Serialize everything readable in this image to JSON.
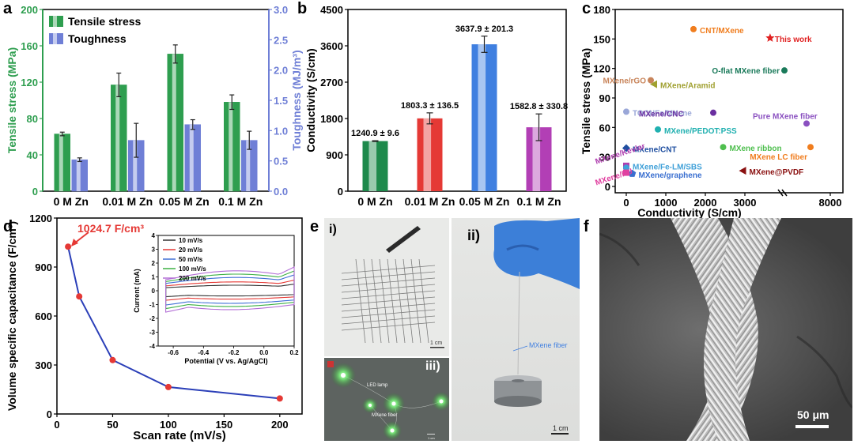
{
  "panel_letters": {
    "a": "a",
    "b": "b",
    "c": "c",
    "d": "d",
    "e": "e",
    "f": "f"
  },
  "chart_data": [
    {
      "id": "a",
      "type": "bar",
      "categories": [
        "0 M Zn",
        "0.01 M Zn",
        "0.05 M Zn",
        "0.1 M Zn"
      ],
      "series": [
        {
          "name": "Tensile stress",
          "axis": "left",
          "color": "#2e9e4f",
          "values": [
            63,
            117,
            151,
            98
          ],
          "errors": [
            2,
            13,
            10,
            8
          ]
        },
        {
          "name": "Toughness",
          "axis": "right",
          "color": "#6f7fd6",
          "values": [
            0.52,
            0.84,
            1.1,
            0.84
          ],
          "errors": [
            0.03,
            0.28,
            0.08,
            0.15
          ]
        }
      ],
      "ylabel": "Tensile stress (MPa)",
      "y2label": "Toughness (MJ/m³)",
      "ylim": [
        0,
        200
      ],
      "y2lim": [
        0,
        3.0
      ],
      "yticks": [
        "0",
        "40",
        "80",
        "120",
        "160",
        "200"
      ],
      "y2ticks": [
        "0.0",
        "0.5",
        "1.0",
        "1.5",
        "2.0",
        "2.5",
        "3.0"
      ],
      "legend": "top-left"
    },
    {
      "id": "b",
      "type": "bar",
      "categories": [
        "0 M Zn",
        "0.01 M Zn",
        "0.05 M Zn",
        "0.1 M Zn"
      ],
      "values": [
        1240.9,
        1803.3,
        3637.9,
        1582.8
      ],
      "errors": [
        9.6,
        136.5,
        201.3,
        330.8
      ],
      "labels": [
        "1240.9 ± 9.6",
        "1803.3 ± 136.5",
        "3637.9 ± 201.3",
        "1582.8 ± 330.8"
      ],
      "colors": [
        "#1e8a4c",
        "#e53935",
        "#3f7fe0",
        "#b23fb5"
      ],
      "ylabel": "Conductivity (S/cm)",
      "ylim": [
        0,
        4500
      ],
      "yticks": [
        "0",
        "900",
        "1800",
        "2700",
        "3600",
        "4500"
      ]
    },
    {
      "id": "c",
      "type": "scatter",
      "xlabel": "Conductivity (S/cm)",
      "ylabel": "Tensile stress (MPa)",
      "xticks": [
        "0",
        "1000",
        "2000",
        "3000",
        "8000"
      ],
      "yticks": [
        "0",
        "30",
        "60",
        "90",
        "120",
        "150",
        "180"
      ],
      "ylim": [
        0,
        180
      ],
      "points": [
        {
          "name": "CNT/MXene",
          "x": 1700,
          "y": 160,
          "color": "#f07d1e",
          "shape": "circle"
        },
        {
          "name": "This work",
          "x": 3638,
          "y": 151,
          "color": "#e02020",
          "shape": "star"
        },
        {
          "name": "O-flat MXene fiber",
          "x": 4000,
          "y": 118,
          "color": "#1a7a5a",
          "shape": "circle"
        },
        {
          "name": "MXene/rGO",
          "x": 620,
          "y": 108,
          "color": "#c8845a",
          "shape": "circle"
        },
        {
          "name": "MXene/Aramid",
          "x": 700,
          "y": 104,
          "color": "#a0a030",
          "shape": "triangle"
        },
        {
          "name": "TOCNFs/MXene",
          "x": 0,
          "y": 76,
          "color": "#9aa7d8",
          "shape": "circle"
        },
        {
          "name": "MXene/CNC",
          "x": 2200,
          "y": 75,
          "color": "#6a2fa0",
          "shape": "circle"
        },
        {
          "name": "Pure MXene fiber",
          "x": 7400,
          "y": 64,
          "color": "#8a50c0",
          "shape": "circle"
        },
        {
          "name": "MXene/PEDOT:PSS",
          "x": 800,
          "y": 58,
          "color": "#20b0b0",
          "shape": "circle"
        },
        {
          "name": "MXene/CNT",
          "x": 0,
          "y": 39,
          "color": "#1f4fa0",
          "shape": "diamond"
        },
        {
          "name": "MXene ribbon",
          "x": 2450,
          "y": 40,
          "color": "#4fbf4f",
          "shape": "circle"
        },
        {
          "name": "MXene LC fiber",
          "x": 7500,
          "y": 40,
          "color": "#f07d1e",
          "shape": "circle"
        },
        {
          "name": "MXene/Kevlar",
          "x": 0,
          "y": 21,
          "color": "#b040b0",
          "shape": "square"
        },
        {
          "name": "MXene/Fe-LM/SBS",
          "x": 0,
          "y": 19,
          "color": "#3fa0d8",
          "shape": "circle"
        },
        {
          "name": "MXene/graphene",
          "x": 150,
          "y": 13,
          "color": "#3a6fd0",
          "shape": "pentagon"
        },
        {
          "name": "MXene/PU",
          "x": 0,
          "y": 14,
          "color": "#e040a0",
          "shape": "square"
        },
        {
          "name": "MXene@PVDF",
          "x": 2950,
          "y": 16,
          "color": "#8a1010",
          "shape": "triangle"
        }
      ]
    },
    {
      "id": "d",
      "type": "line",
      "x": [
        10,
        20,
        50,
        100,
        200
      ],
      "values": [
        1024.7,
        720,
        330,
        165,
        95
      ],
      "annotation": "1024.7 F/cm³",
      "xlabel": "Scan rate (mV/s)",
      "ylabel": "Volume  specific capacitance (F/cm³)",
      "xlim": [
        0,
        220
      ],
      "ylim": [
        0,
        1200
      ],
      "xticks": [
        "0",
        "50",
        "100",
        "150",
        "200"
      ],
      "yticks": [
        "0",
        "300",
        "600",
        "900",
        "1200"
      ],
      "inset": {
        "type": "line",
        "xlabel": "Potential (V vs. Ag/AgCl)",
        "ylabel": "Current (mA)",
        "xlim": [
          -0.7,
          0.2
        ],
        "ylim": [
          -4,
          4
        ],
        "xticks": [
          "-0.6",
          "-0.4",
          "-0.2",
          "0.0",
          "0.2"
        ],
        "yticks": [
          "-4",
          "-3",
          "-2",
          "-1",
          "0",
          "1",
          "2",
          "3",
          "4"
        ],
        "series": [
          {
            "name": "10 mV/s",
            "color": "#333333",
            "scale": 1.0
          },
          {
            "name": "20 mV/s",
            "color": "#e53935",
            "scale": 1.6
          },
          {
            "name": "50 mV/s",
            "color": "#3f6fd6",
            "scale": 2.4
          },
          {
            "name": "100 mV/s",
            "color": "#3cb043",
            "scale": 3.0
          },
          {
            "name": "200 mV/s",
            "color": "#b36fd6",
            "scale": 3.6
          }
        ]
      }
    }
  ],
  "photos": {
    "e_i": {
      "label": "i)",
      "scale": "1 cm"
    },
    "e_ii": {
      "label": "ii)",
      "scale": "1 cm",
      "annotation": "MXene fiber"
    },
    "e_iii": {
      "label": "iii)",
      "led": "LED lamp",
      "fiber": "MXene fiber",
      "scale": "1 cm"
    },
    "f": {
      "scale": "50 μm"
    }
  }
}
